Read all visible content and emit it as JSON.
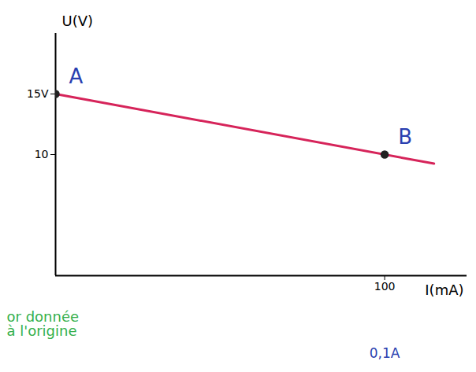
{
  "chart_data": {
    "type": "line",
    "x_label": "I(mA)",
    "y_label": "U(V)",
    "xlim": [
      0,
      125
    ],
    "ylim": [
      0,
      20
    ],
    "xticks": [
      100
    ],
    "yticks": [
      {
        "value": 15,
        "label": "15V"
      },
      10
    ],
    "grid": false,
    "series": [
      {
        "color": "#d6245a",
        "x": [
          0,
          115
        ],
        "values": [
          15,
          9.25
        ]
      }
    ],
    "points": [
      {
        "label": "A",
        "x": 0,
        "y": 15,
        "color": "#2a3fb0"
      },
      {
        "label": "B",
        "x": 100,
        "y": 10,
        "color": "#2a3fb0"
      }
    ],
    "notes": [
      {
        "text": "0,1A",
        "x": 100,
        "color": "#2a3fb0"
      },
      {
        "text": "or donnée à l'origine",
        "x": 0,
        "color": "#35b04c"
      }
    ]
  }
}
